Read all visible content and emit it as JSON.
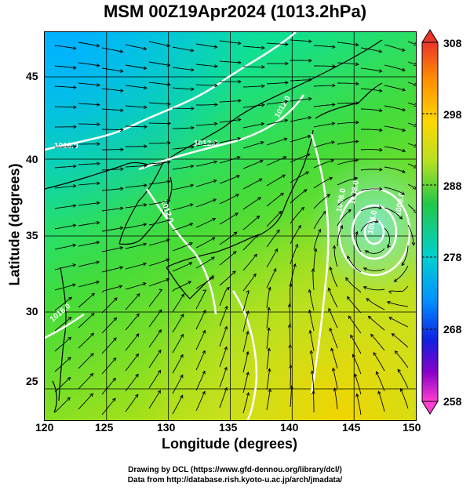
{
  "title": "MSM 00Z19Apr2024 (1013.2hPa)",
  "x_axis": {
    "label": "Longitude (degrees)",
    "ticks": [
      "120",
      "125",
      "130",
      "135",
      "140",
      "145",
      "150"
    ]
  },
  "y_axis": {
    "label": "Latitude  (degrees)",
    "ticks": [
      "25",
      "30",
      "35",
      "40",
      "45"
    ]
  },
  "colorbar": {
    "labels": [
      "308",
      "298",
      "288",
      "278",
      "268",
      "258"
    ]
  },
  "isobar_labels": [
    "1016.0",
    "1012.0",
    "1012.0",
    "1012.0",
    "1008.0",
    "1008.0",
    "1008.0",
    "1004.0",
    "1016.0"
  ],
  "credits": {
    "line1": "Drawing by DCL (https://www.gfd-dennou.org/library/dcl/)",
    "line2": "Data from http://database.rish.kyoto-u.ac.jp/arch/jmadata/"
  },
  "colors": {
    "cold": "#00c8ff",
    "mid": "#3fd53f",
    "warm": "#f0dc00",
    "isobar": "#ffffff",
    "stream": "#000000"
  }
}
